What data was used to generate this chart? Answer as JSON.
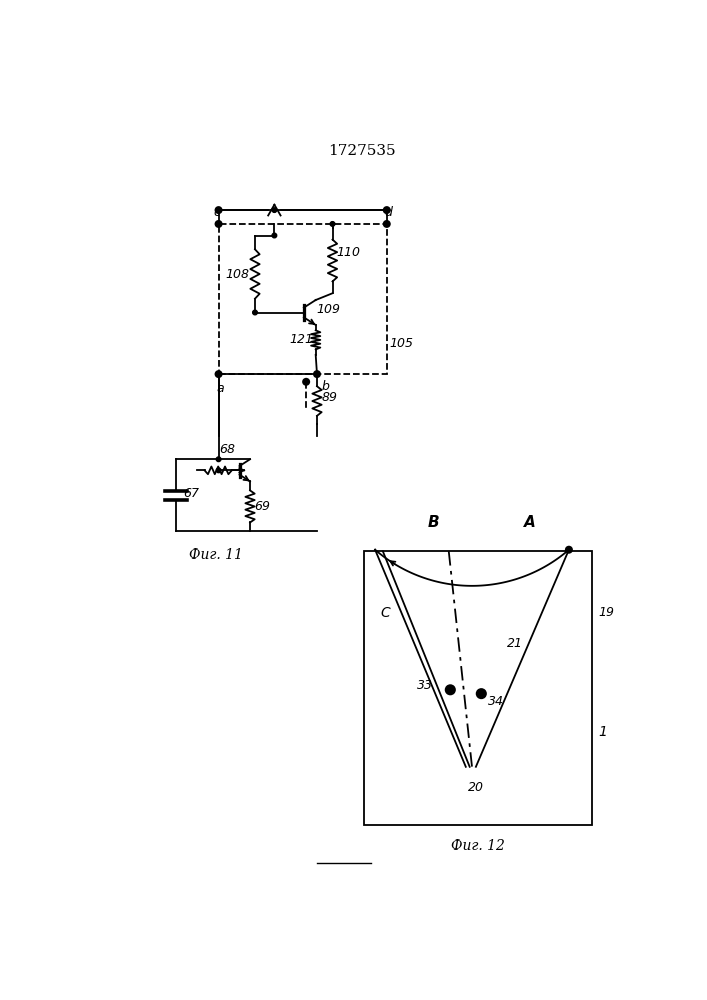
{
  "title": "1727535",
  "line_color": "#000000",
  "fig11_label": "Фиг. 11",
  "fig12_label": "Фиг. 12",
  "bg_color": "#ffffff"
}
